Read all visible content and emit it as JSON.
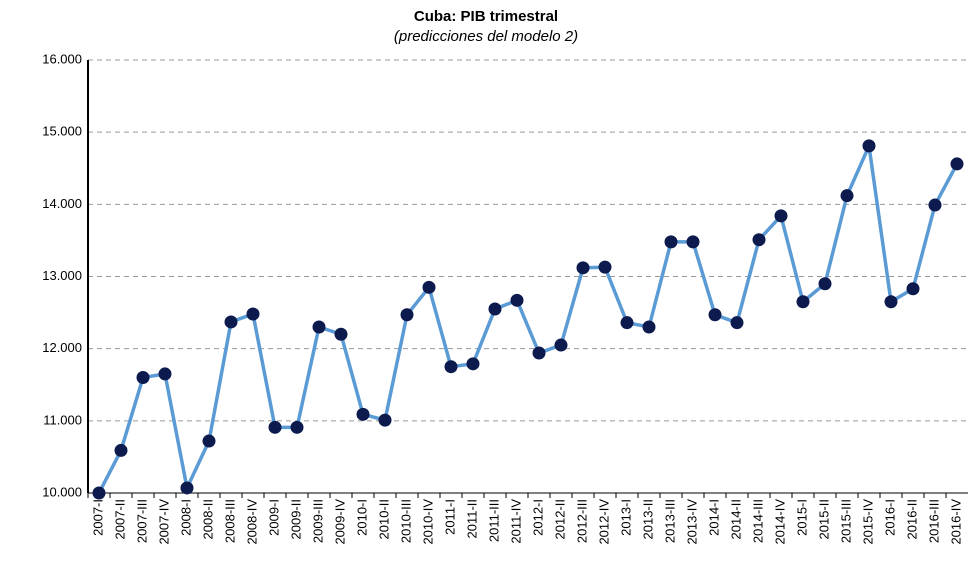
{
  "chart_data": {
    "type": "line",
    "title": "Cuba: PIB trimestral",
    "subtitle": "(predicciones del modelo 2)",
    "categories": [
      "2007-I",
      "2007-II",
      "2007-III",
      "2007-IV",
      "2008-I",
      "2008-II",
      "2008-III",
      "2008-IV",
      "2009-I",
      "2009-II",
      "2009-III",
      "2009-IV",
      "2010-I",
      "2010-II",
      "2010-III",
      "2010-IV",
      "2011-I",
      "2011-II",
      "2011-III",
      "2011-IV",
      "2012-I",
      "2012-II",
      "2012-III",
      "2012-IV",
      "2013-I",
      "2013-II",
      "2013-III",
      "2013-IV",
      "2014-I",
      "2014-II",
      "2014-III",
      "2014-IV",
      "2015-I",
      "2015-II",
      "2015-III",
      "2015-IV",
      "2016-I",
      "2016-II",
      "2016-III",
      "2016-IV"
    ],
    "series": [
      {
        "name": "PIB",
        "color": "#5b9bd5",
        "marker_color": "#0c1a4e",
        "values": [
          10000,
          10590,
          11600,
          11650,
          10070,
          10720,
          12370,
          12480,
          10910,
          10910,
          12300,
          12200,
          11090,
          11010,
          12470,
          12850,
          11750,
          11790,
          12550,
          12670,
          11940,
          12050,
          13120,
          13130,
          12360,
          12300,
          13480,
          13480,
          12470,
          12360,
          13510,
          13840,
          12650,
          12900,
          14120,
          14810,
          12650,
          12830,
          13990,
          14560
        ]
      }
    ],
    "ylim": [
      10000,
      16000
    ],
    "yticks": [
      {
        "value": 10000,
        "label": "10.000"
      },
      {
        "value": 11000,
        "label": "11.000"
      },
      {
        "value": 12000,
        "label": "12.000"
      },
      {
        "value": 13000,
        "label": "13.000"
      },
      {
        "value": 14000,
        "label": "14.000"
      },
      {
        "value": 15000,
        "label": "15.000"
      },
      {
        "value": 16000,
        "label": "16.000"
      }
    ],
    "grid": true
  }
}
